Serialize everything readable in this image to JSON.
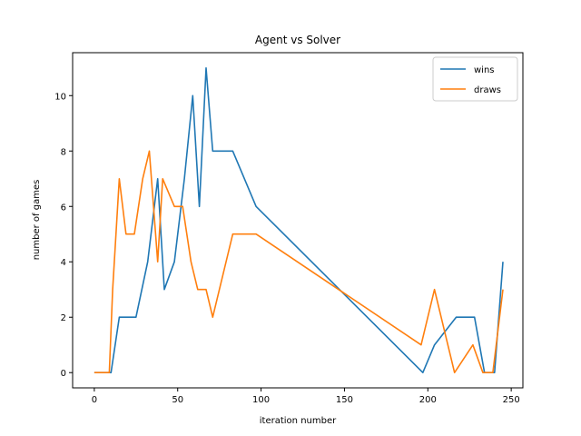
{
  "chart_data": {
    "type": "line",
    "title": "Agent vs Solver",
    "xlabel": "iteration number",
    "ylabel": "number of games",
    "xlim": [
      -13,
      257
    ],
    "ylim": [
      -0.55,
      11.55
    ],
    "xticks": [
      0,
      50,
      100,
      150,
      200,
      250
    ],
    "yticks": [
      0,
      2,
      4,
      6,
      8,
      10
    ],
    "grid": false,
    "legend_position": "top-right",
    "series": [
      {
        "name": "wins",
        "color": "#1f77b4",
        "x": [
          0,
          5,
          10,
          15,
          20,
          25,
          32,
          38,
          42,
          48,
          54,
          59,
          63,
          67,
          71,
          76,
          83,
          97,
          197,
          204,
          217,
          228,
          234,
          240,
          245
        ],
        "y": [
          0,
          0,
          0,
          2,
          2,
          2,
          4,
          7,
          3,
          4,
          7,
          10,
          6,
          11,
          8,
          8,
          8,
          6,
          0,
          1,
          2,
          2,
          0,
          0,
          4
        ]
      },
      {
        "name": "draws",
        "color": "#ff7f0e",
        "x": [
          0,
          5,
          9,
          11,
          15,
          19,
          24,
          29,
          33,
          38,
          41,
          48,
          53,
          58,
          62,
          67,
          71,
          83,
          97,
          196,
          204,
          216,
          227,
          233,
          239,
          245
        ],
        "y": [
          0,
          0,
          0,
          3,
          7,
          5,
          5,
          7,
          8,
          4,
          7,
          6,
          6,
          4,
          3,
          3,
          2,
          5,
          5,
          1,
          3,
          0,
          1,
          0,
          0,
          3
        ]
      }
    ]
  }
}
